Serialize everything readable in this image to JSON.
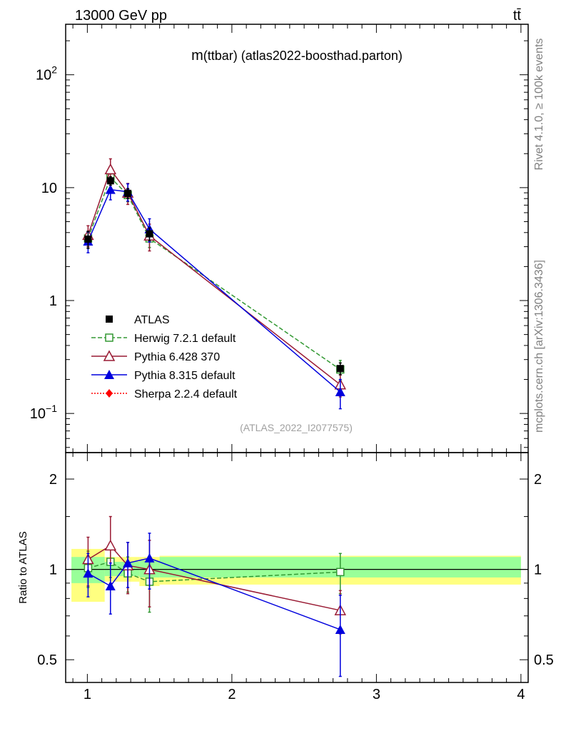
{
  "header": {
    "energy_label": "13000 GeV pp",
    "process_label": "tt̄"
  },
  "side_labels": {
    "rivet": "Rivet 4.1.0, ≥ 100k events",
    "mcplots": "mcplots.cern.ch [arXiv:1306.3436]"
  },
  "watermark": "(ATLAS_2022_I2077575)",
  "chart_data": [
    {
      "type": "line",
      "title": "m(ttbar) (atlas2022-boosthad.parton)",
      "title_main": "m",
      "title_rest": "(ttbar) (atlas2022-boosthad.parton)",
      "yscale": "log",
      "xlim": [
        0.85,
        4.05
      ],
      "ylim": [
        0.045,
        280
      ],
      "x_ticks": [
        1,
        2,
        3,
        4
      ],
      "y_tick_labels": [
        {
          "value": 100,
          "base": "10",
          "exp": "2"
        },
        {
          "value": 10,
          "text": "10"
        },
        {
          "value": 1,
          "text": "1"
        },
        {
          "value": 0.1,
          "base": "10",
          "exp": "−1"
        }
      ],
      "bin_edges": [
        0.89,
        1.12,
        1.2,
        1.36,
        1.5,
        4.0
      ],
      "data": {
        "name": "ATLAS",
        "x": [
          1.005,
          1.16,
          1.28,
          1.43,
          2.75
        ],
        "y": [
          3.5,
          11.5,
          8.9,
          3.9,
          0.25
        ],
        "err_lo": [
          0.6,
          1.0,
          0.9,
          0.5,
          0.03
        ],
        "err_hi": [
          0.6,
          1.0,
          0.9,
          0.5,
          0.03
        ]
      },
      "series": [
        {
          "name": "Herwig 7.2.1 default",
          "color": "#339933",
          "dash": "6,3",
          "marker": "open-square",
          "x": [
            1.005,
            1.16,
            1.28,
            1.43,
            2.75
          ],
          "y": [
            3.55,
            12.3,
            8.6,
            3.55,
            0.245
          ],
          "err": [
            0.55,
            1.5,
            1.1,
            0.6,
            0.05
          ]
        },
        {
          "name": "Pythia 6.428 370",
          "color": "#991a33",
          "dash": "",
          "marker": "open-triangle",
          "x": [
            1.005,
            1.16,
            1.28,
            1.43,
            2.75
          ],
          "y": [
            3.8,
            14.5,
            9.0,
            3.75,
            0.18
          ],
          "err": [
            0.8,
            3.5,
            1.9,
            1.0,
            0.04
          ]
        },
        {
          "name": "Pythia 8.315 default",
          "color": "#0000dd",
          "dash": "",
          "marker": "filled-triangle",
          "x": [
            1.005,
            1.16,
            1.28,
            1.43,
            2.75
          ],
          "y": [
            3.35,
            9.6,
            9.2,
            4.3,
            0.155
          ],
          "err": [
            0.7,
            1.8,
            1.6,
            1.0,
            0.045
          ]
        },
        {
          "name": "Sherpa 2.2.4 default",
          "color": "#ff0000",
          "dash": "2,2",
          "marker": "filled-diamond",
          "x": [],
          "y": [],
          "err": []
        }
      ]
    },
    {
      "type": "line",
      "ylabel": "Ratio to ATLAS",
      "yscale": "log",
      "xlim": [
        0.85,
        4.05
      ],
      "ylim": [
        0.42,
        2.45
      ],
      "x_ticks": [
        1,
        2,
        3,
        4
      ],
      "y_ticks": [
        0.5,
        1,
        2
      ],
      "y_tick_labels": [
        "0.5",
        "1",
        "2"
      ],
      "band_inner": [
        {
          "x0": 0.89,
          "x1": 1.12,
          "lo": 0.9,
          "hi": 1.1
        },
        {
          "x0": 1.12,
          "x1": 1.2,
          "lo": 0.95,
          "hi": 1.06
        },
        {
          "x0": 1.2,
          "x1": 1.36,
          "lo": 0.95,
          "hi": 1.06
        },
        {
          "x0": 1.36,
          "x1": 1.5,
          "lo": 0.94,
          "hi": 1.07
        },
        {
          "x0": 1.5,
          "x1": 4.0,
          "lo": 0.94,
          "hi": 1.1
        }
      ],
      "band_outer": [
        {
          "x0": 0.89,
          "x1": 1.12,
          "lo": 0.78,
          "hi": 1.17
        },
        {
          "x0": 1.12,
          "x1": 1.2,
          "lo": 0.91,
          "hi": 1.1
        },
        {
          "x0": 1.2,
          "x1": 1.36,
          "lo": 0.91,
          "hi": 1.1
        },
        {
          "x0": 1.36,
          "x1": 1.5,
          "lo": 0.88,
          "hi": 1.1
        },
        {
          "x0": 1.5,
          "x1": 4.0,
          "lo": 0.89,
          "hi": 1.11
        }
      ],
      "series": [
        {
          "name": "Herwig 7.2.1 default",
          "x": [
            1.005,
            1.16,
            1.28,
            1.43,
            2.75
          ],
          "y": [
            1.01,
            1.06,
            0.97,
            0.91,
            0.98
          ],
          "err": [
            0.14,
            0.12,
            0.13,
            0.19,
            0.15
          ]
        },
        {
          "name": "Pythia 6.428 370",
          "x": [
            1.005,
            1.16,
            1.28,
            1.43,
            2.75
          ],
          "y": [
            1.08,
            1.2,
            1.03,
            1.0,
            0.73
          ],
          "err": [
            0.2,
            0.3,
            0.2,
            0.25,
            0.12
          ]
        },
        {
          "name": "Pythia 8.315 default",
          "x": [
            1.005,
            1.16,
            1.28,
            1.43,
            2.75
          ],
          "y": [
            0.97,
            0.88,
            1.05,
            1.09,
            0.63
          ],
          "err": [
            0.16,
            0.17,
            0.18,
            0.23,
            0.19
          ]
        }
      ]
    }
  ]
}
